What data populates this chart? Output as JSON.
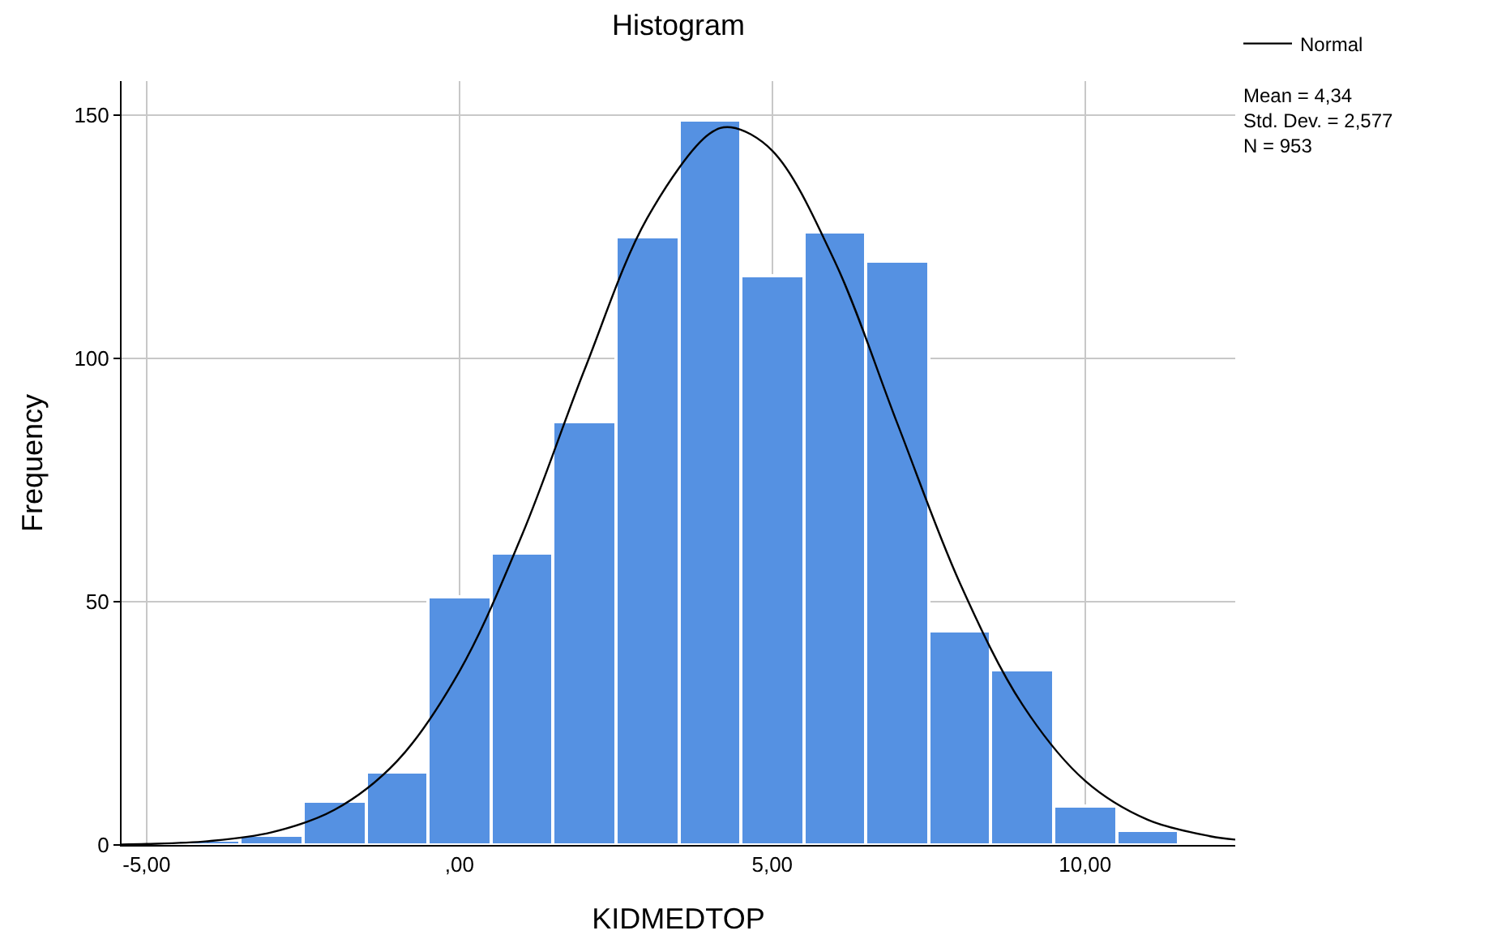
{
  "chart_data": {
    "type": "histogram",
    "title": "Histogram",
    "xlabel": "KIDMEDTOP",
    "ylabel": "Frequency",
    "series": [
      {
        "color": "#5591e2",
        "bins": [
          -4.5,
          -3.5,
          -2.5,
          -1.5,
          -0.5,
          0.5,
          1.5,
          2.5,
          3.5,
          4.5,
          5.5,
          6.5,
          7.5,
          8.5,
          9.5,
          10.5,
          11.5
        ],
        "values": [
          1,
          2,
          9,
          15,
          51,
          60,
          87,
          125,
          149,
          117,
          126,
          120,
          44,
          36,
          8,
          3
        ]
      },
      {
        "type": "line",
        "name": "Normal",
        "color": "#000000",
        "x": [
          -5.4,
          -5,
          -4,
          -3,
          -2,
          -1,
          0,
          1,
          2,
          3,
          4,
          4.34,
          5,
          6,
          7,
          8,
          9,
          10,
          11,
          12,
          12.4
        ],
        "values": [
          0.1,
          0.2,
          0.8,
          2.6,
          7.2,
          17.2,
          35.7,
          63.7,
          97.7,
          128.8,
          146.2,
          147.5,
          142.7,
          119.9,
          86.6,
          53.8,
          28.8,
          13.2,
          5.2,
          1.8,
          1.1
        ]
      }
    ],
    "annotations": [
      "Mean = 4,34\nStd. Dev. = 2,577\nN = 953"
    ],
    "xlim": [
      -5.4,
      12.4
    ],
    "ylim": [
      0,
      157
    ],
    "xticks": [
      {
        "value": -5,
        "label": "-5,00"
      },
      {
        "value": 0,
        "label": ",00"
      },
      {
        "value": 5,
        "label": "5,00"
      },
      {
        "value": 10,
        "label": "10,00"
      }
    ],
    "yticks": [
      0,
      50,
      100,
      150
    ],
    "grid": true,
    "legend": "top right"
  }
}
